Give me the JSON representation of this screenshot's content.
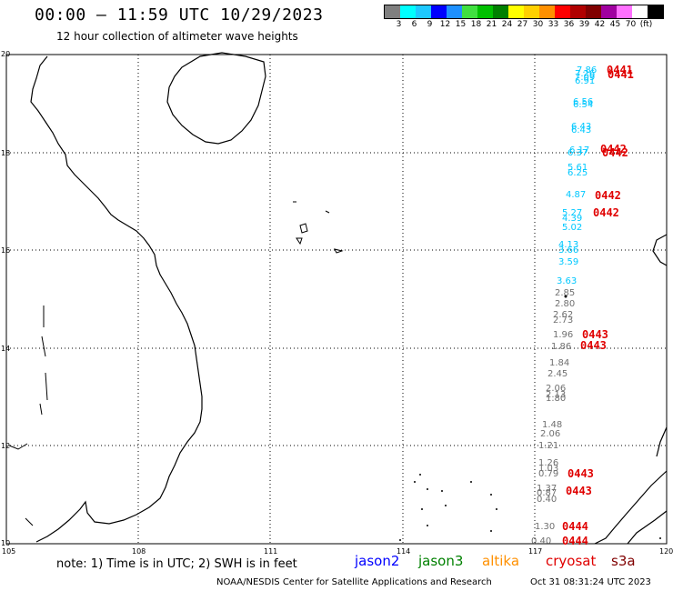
{
  "header": {
    "title": "00:00 – 11:59 UTC 10/29/2023",
    "subtitle": "12 hour collection of altimeter wave heights"
  },
  "scale": {
    "colors": [
      "#7f7f7f",
      "#00ffff",
      "#1ec8ff",
      "#0000ff",
      "#1e90ff",
      "#40e040",
      "#00c000",
      "#008000",
      "#ffff00",
      "#ffd000",
      "#ff9000",
      "#ff0000",
      "#b00000",
      "#800000",
      "#a000a0",
      "#ff70ff",
      "#ffffff",
      "#000000"
    ],
    "labels": [
      "3",
      "6",
      "9",
      "12",
      "15",
      "18",
      "21",
      "24",
      "27",
      "30",
      "33",
      "36",
      "39",
      "42",
      "45",
      "70",
      "(ft)"
    ]
  },
  "axes": {
    "lat_ticks": [
      "20",
      "18",
      "16",
      "14",
      "12",
      "10"
    ],
    "lon_ticks": [
      "105",
      "108",
      "111",
      "114",
      "117",
      "120"
    ]
  },
  "wave_heights": [
    {
      "text": "7.86",
      "color": "#00c8ff"
    },
    {
      "text": "7.26",
      "color": "#00c8ff"
    },
    {
      "text": "7.09",
      "color": "#00c8ff"
    },
    {
      "text": "6.91",
      "color": "#00c8ff"
    },
    {
      "text": "6.56",
      "color": "#00c8ff"
    },
    {
      "text": "6.54",
      "color": "#00c8ff"
    },
    {
      "text": "6.43",
      "color": "#00c8ff"
    },
    {
      "text": "6.43",
      "color": "#00c8ff"
    },
    {
      "text": "6.17",
      "color": "#00c8ff"
    },
    {
      "text": "6.37",
      "color": "#00c8ff"
    },
    {
      "text": "5.61",
      "color": "#00c8ff"
    },
    {
      "text": "6.25",
      "color": "#00c8ff"
    },
    {
      "text": "4.87",
      "color": "#00c8ff"
    },
    {
      "text": "5.27",
      "color": "#00c8ff"
    },
    {
      "text": "4.39",
      "color": "#00c8ff"
    },
    {
      "text": "5.02",
      "color": "#00c8ff"
    },
    {
      "text": "4.13",
      "color": "#00c8ff"
    },
    {
      "text": "3.66",
      "color": "#00c8ff"
    },
    {
      "text": "3.59",
      "color": "#00c8ff"
    },
    {
      "text": "3.63",
      "color": "#00c8ff"
    },
    {
      "text": "2.85",
      "color": "#707070"
    },
    {
      "text": "2.80",
      "color": "#707070"
    },
    {
      "text": "2.62",
      "color": "#707070"
    },
    {
      "text": "2.73",
      "color": "#707070"
    },
    {
      "text": "1.96",
      "color": "#707070"
    },
    {
      "text": "1.86",
      "color": "#707070"
    },
    {
      "text": "1.84",
      "color": "#707070"
    },
    {
      "text": "2.45",
      "color": "#707070"
    },
    {
      "text": "2.06",
      "color": "#707070"
    },
    {
      "text": "2.13",
      "color": "#707070"
    },
    {
      "text": "1.80",
      "color": "#707070"
    },
    {
      "text": "1.48",
      "color": "#707070"
    },
    {
      "text": "2.06",
      "color": "#707070"
    },
    {
      "text": "1.21",
      "color": "#707070"
    },
    {
      "text": "1.26",
      "color": "#707070"
    },
    {
      "text": "1.03",
      "color": "#707070"
    },
    {
      "text": "0.79",
      "color": "#707070"
    },
    {
      "text": "1.37",
      "color": "#707070"
    },
    {
      "text": "0.87",
      "color": "#707070"
    },
    {
      "text": "0.40",
      "color": "#707070"
    },
    {
      "text": "1.30",
      "color": "#707070"
    },
    {
      "text": "0.40",
      "color": "#707070"
    }
  ],
  "pass_ids": [
    "0441",
    "0441",
    "0442",
    "0442",
    "0442",
    "0442",
    "0443",
    "0443",
    "0443",
    "0443",
    "0444",
    "0444"
  ],
  "footer": {
    "note": "note: 1) Time is in UTC; 2) SWH is in feet",
    "missions": [
      {
        "label": "jason2",
        "color": "#0000ff"
      },
      {
        "label": "jason3",
        "color": "#008000"
      },
      {
        "label": "altika",
        "color": "#ff9000"
      },
      {
        "label": "cryosat",
        "color": "#e00000"
      },
      {
        "label": "s3a",
        "color": "#800000"
      }
    ],
    "credit": "NOAA/NESDIS Center for Satellite Applications and Research",
    "timestamp": "Oct 31 08:31:24 UTC 2023"
  }
}
